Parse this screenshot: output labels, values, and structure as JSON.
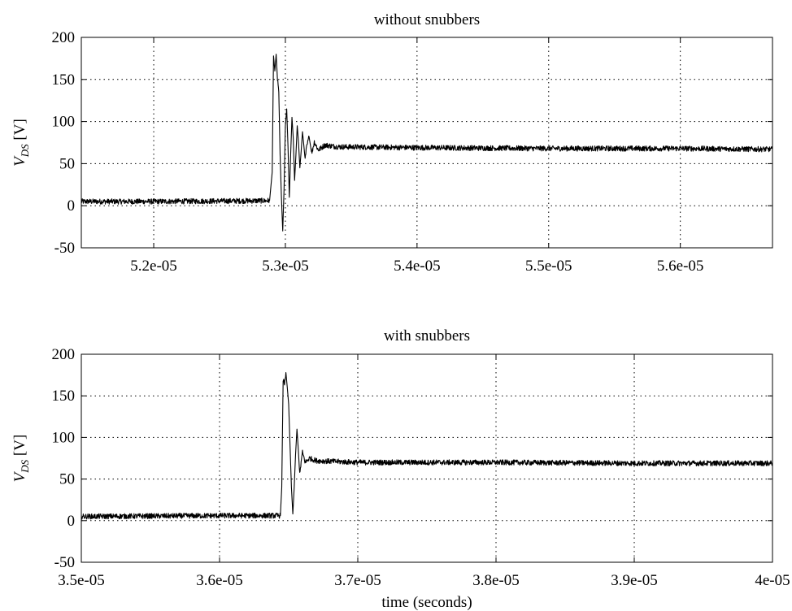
{
  "chart_data": [
    {
      "type": "line",
      "title": "without snubbers",
      "xlabel": "",
      "ylabel_base": "V",
      "ylabel_sub": "DS",
      "ylabel_unit": "[V]",
      "xlim": [
        5.145e-05,
        5.67e-05
      ],
      "ylim": [
        -50,
        200
      ],
      "xticks": [
        5.2e-05,
        5.3e-05,
        5.4e-05,
        5.5e-05,
        5.6e-05
      ],
      "xtick_labels": [
        "5.2e-05",
        "5.3e-05",
        "5.4e-05",
        "5.5e-05",
        "5.6e-05"
      ],
      "yticks": [
        -50,
        0,
        50,
        100,
        150,
        200
      ],
      "ytick_labels": [
        "-50",
        "0",
        "50",
        "100",
        "150",
        "200"
      ],
      "grid": true,
      "series": [
        {
          "points": [
            [
              5.145e-05,
              5
            ],
            [
              5.2e-05,
              5
            ],
            [
              5.288e-05,
              6
            ],
            [
              5.29e-05,
              40
            ],
            [
              5.291e-05,
              178
            ],
            [
              5.292e-05,
              160
            ],
            [
              5.293e-05,
              180
            ],
            [
              5.294e-05,
              150
            ],
            [
              5.295e-05,
              135
            ],
            [
              5.296e-05,
              60
            ],
            [
              5.297e-05,
              10
            ],
            [
              5.298e-05,
              -30
            ],
            [
              5.299e-05,
              20
            ],
            [
              5.3e-05,
              95
            ],
            [
              5.301e-05,
              115
            ],
            [
              5.302e-05,
              70
            ],
            [
              5.303e-05,
              10
            ],
            [
              5.304e-05,
              60
            ],
            [
              5.305e-05,
              105
            ],
            [
              5.306e-05,
              80
            ],
            [
              5.307e-05,
              30
            ],
            [
              5.308e-05,
              60
            ],
            [
              5.309e-05,
              95
            ],
            [
              5.31e-05,
              75
            ],
            [
              5.311e-05,
              45
            ],
            [
              5.312e-05,
              65
            ],
            [
              5.313e-05,
              88
            ],
            [
              5.314e-05,
              72
            ],
            [
              5.315e-05,
              55
            ],
            [
              5.316e-05,
              68
            ],
            [
              5.318e-05,
              82
            ],
            [
              5.32e-05,
              62
            ],
            [
              5.322e-05,
              76
            ],
            [
              5.325e-05,
              66
            ],
            [
              5.33e-05,
              72
            ],
            [
              5.34e-05,
              70
            ],
            [
              5.4e-05,
              69
            ],
            [
              5.5e-05,
              68
            ],
            [
              5.6e-05,
              68
            ],
            [
              5.67e-05,
              67
            ]
          ]
        }
      ]
    },
    {
      "type": "line",
      "title": "with snubbers",
      "xlabel": "time (seconds)",
      "ylabel_base": "V",
      "ylabel_sub": "DS",
      "ylabel_unit": "[V]",
      "xlim": [
        3.5e-05,
        4e-05
      ],
      "ylim": [
        -50,
        200
      ],
      "xticks": [
        3.5e-05,
        3.6e-05,
        3.7e-05,
        3.8e-05,
        3.9e-05,
        4e-05
      ],
      "xtick_labels": [
        "3.5e-05",
        "3.6e-05",
        "3.7e-05",
        "3.8e-05",
        "3.9e-05",
        "4e-05"
      ],
      "yticks": [
        -50,
        0,
        50,
        100,
        150,
        200
      ],
      "ytick_labels": [
        "-50",
        "0",
        "50",
        "100",
        "150",
        "200"
      ],
      "grid": true,
      "series": [
        {
          "points": [
            [
              3.5e-05,
              5
            ],
            [
              3.6e-05,
              6
            ],
            [
              3.644e-05,
              6
            ],
            [
              3.645e-05,
              40
            ],
            [
              3.646e-05,
              170
            ],
            [
              3.647e-05,
              165
            ],
            [
              3.648e-05,
              178
            ],
            [
              3.649e-05,
              160
            ],
            [
              3.65e-05,
              140
            ],
            [
              3.651e-05,
              90
            ],
            [
              3.652e-05,
              40
            ],
            [
              3.653e-05,
              8
            ],
            [
              3.654e-05,
              40
            ],
            [
              3.655e-05,
              80
            ],
            [
              3.656e-05,
              110
            ],
            [
              3.657e-05,
              85
            ],
            [
              3.658e-05,
              55
            ],
            [
              3.659e-05,
              70
            ],
            [
              3.66e-05,
              82
            ],
            [
              3.662e-05,
              70
            ],
            [
              3.665e-05,
              75
            ],
            [
              3.67e-05,
              72
            ],
            [
              3.7e-05,
              70
            ],
            [
              3.8e-05,
              70
            ],
            [
              3.9e-05,
              69
            ],
            [
              4e-05,
              69
            ]
          ]
        }
      ]
    }
  ]
}
